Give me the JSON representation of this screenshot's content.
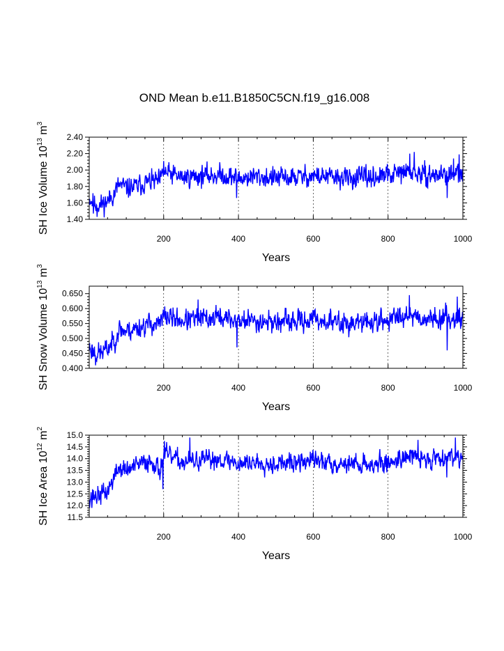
{
  "title": "OND Mean b.e11.B1850C5CN.f19_g16.008",
  "colors": {
    "series": "#0000ff",
    "axis": "#000000",
    "grid": "#000000"
  },
  "chart_data": [
    {
      "type": "line",
      "name": "ice-volume",
      "ylabel": {
        "main": "SH Ice Volume 10",
        "exp1": "13",
        "unit": " m",
        "exp2": "3"
      },
      "xlabel": "Years",
      "xlim": [
        1,
        1000
      ],
      "ylim": [
        1.4,
        2.4
      ],
      "xticks": [
        200,
        400,
        600,
        800,
        1000
      ],
      "xtick_labels": [
        "200",
        "400",
        "600",
        "800",
        "1000"
      ],
      "yticks": [
        1.4,
        1.6,
        1.8,
        2.0,
        2.2,
        2.4
      ],
      "ytick_labels": [
        "1.40",
        "1.60",
        "1.80",
        "2.00",
        "2.20",
        "2.40"
      ],
      "grid": "vertical dashed at x ticks",
      "trend": {
        "x": [
          1,
          15,
          30,
          50,
          70,
          80,
          100,
          130,
          150,
          170,
          190,
          200,
          250,
          300,
          350,
          400,
          450,
          500,
          550,
          600,
          650,
          700,
          750,
          800,
          850,
          900,
          950,
          1000
        ],
        "y": [
          1.66,
          1.59,
          1.57,
          1.62,
          1.73,
          1.82,
          1.78,
          1.8,
          1.85,
          1.86,
          1.86,
          1.97,
          1.91,
          1.93,
          1.94,
          1.9,
          1.92,
          1.9,
          1.91,
          1.93,
          1.91,
          1.9,
          1.91,
          1.93,
          1.98,
          1.93,
          1.95,
          1.94
        ]
      },
      "amplitude": 0.085,
      "seed": 11,
      "spikes": [
        {
          "x": 200,
          "y": 2.11
        },
        {
          "x": 395,
          "y": 1.66
        },
        {
          "x": 870,
          "y": 2.22
        },
        {
          "x": 858,
          "y": 2.2
        },
        {
          "x": 958,
          "y": 1.66
        },
        {
          "x": 990,
          "y": 2.19
        },
        {
          "x": 975,
          "y": 2.14
        },
        {
          "x": 12,
          "y": 1.47
        },
        {
          "x": 22,
          "y": 1.43
        }
      ]
    },
    {
      "type": "line",
      "name": "snow-volume",
      "ylabel": {
        "main": "SH Snow Volume 10",
        "exp1": "13",
        "unit": " m",
        "exp2": "3"
      },
      "xlabel": "Years",
      "xlim": [
        1,
        1000
      ],
      "ylim": [
        0.4,
        0.675
      ],
      "xticks": [
        200,
        400,
        600,
        800,
        1000
      ],
      "xtick_labels": [
        "200",
        "400",
        "600",
        "800",
        "1000"
      ],
      "yticks": [
        0.4,
        0.45,
        0.5,
        0.55,
        0.6,
        0.65
      ],
      "ytick_labels": [
        "0.400",
        "0.450",
        "0.500",
        "0.550",
        "0.600",
        "0.650"
      ],
      "grid": "vertical dashed at x ticks",
      "trend": {
        "x": [
          1,
          15,
          30,
          50,
          70,
          80,
          100,
          130,
          150,
          170,
          190,
          200,
          250,
          300,
          350,
          400,
          450,
          500,
          550,
          600,
          650,
          700,
          750,
          800,
          850,
          900,
          950,
          1000
        ],
        "y": [
          0.47,
          0.455,
          0.45,
          0.465,
          0.5,
          0.53,
          0.525,
          0.535,
          0.545,
          0.55,
          0.545,
          0.575,
          0.56,
          0.565,
          0.57,
          0.56,
          0.56,
          0.555,
          0.555,
          0.565,
          0.555,
          0.55,
          0.555,
          0.56,
          0.585,
          0.565,
          0.57,
          0.57
        ]
      },
      "amplitude": 0.024,
      "seed": 23,
      "spikes": [
        {
          "x": 292,
          "y": 0.63
        },
        {
          "x": 396,
          "y": 0.47
        },
        {
          "x": 857,
          "y": 0.645
        },
        {
          "x": 958,
          "y": 0.46
        },
        {
          "x": 985,
          "y": 0.64
        },
        {
          "x": 18,
          "y": 0.41
        },
        {
          "x": 340,
          "y": 0.612
        }
      ]
    },
    {
      "type": "line",
      "name": "ice-area",
      "ylabel": {
        "main": "SH Ice Area 10",
        "exp1": "12",
        "unit": " m",
        "exp2": "2"
      },
      "xlabel": "Years",
      "xlim": [
        1,
        1000
      ],
      "ylim": [
        11.5,
        15.0
      ],
      "xticks": [
        200,
        400,
        600,
        800,
        1000
      ],
      "xtick_labels": [
        "200",
        "400",
        "600",
        "800",
        "1000"
      ],
      "yticks": [
        11.5,
        12.0,
        12.5,
        13.0,
        13.5,
        14.0,
        14.5,
        15.0
      ],
      "ytick_labels": [
        "11.5",
        "12.0",
        "12.5",
        "13.0",
        "13.5",
        "14.0",
        "14.5",
        "15.0"
      ],
      "grid": "vertical dashed at x ticks",
      "trend": {
        "x": [
          1,
          15,
          30,
          50,
          70,
          80,
          100,
          130,
          150,
          170,
          190,
          200,
          250,
          300,
          350,
          400,
          450,
          500,
          550,
          600,
          650,
          700,
          750,
          800,
          850,
          900,
          950,
          1000
        ],
        "y": [
          12.4,
          12.4,
          12.45,
          12.6,
          13.3,
          13.6,
          13.5,
          13.7,
          13.85,
          13.9,
          13.5,
          14.2,
          13.85,
          13.9,
          14.0,
          13.8,
          13.85,
          13.8,
          13.8,
          13.95,
          13.8,
          13.8,
          13.75,
          13.8,
          14.15,
          13.95,
          14.1,
          14.1
        ]
      },
      "amplitude": 0.28,
      "seed": 37,
      "spikes": [
        {
          "x": 198,
          "y": 12.7
        },
        {
          "x": 270,
          "y": 14.9
        },
        {
          "x": 202,
          "y": 14.75
        },
        {
          "x": 980,
          "y": 14.9
        },
        {
          "x": 957,
          "y": 13.2
        },
        {
          "x": 8,
          "y": 11.9
        },
        {
          "x": 880,
          "y": 14.8
        }
      ]
    }
  ]
}
